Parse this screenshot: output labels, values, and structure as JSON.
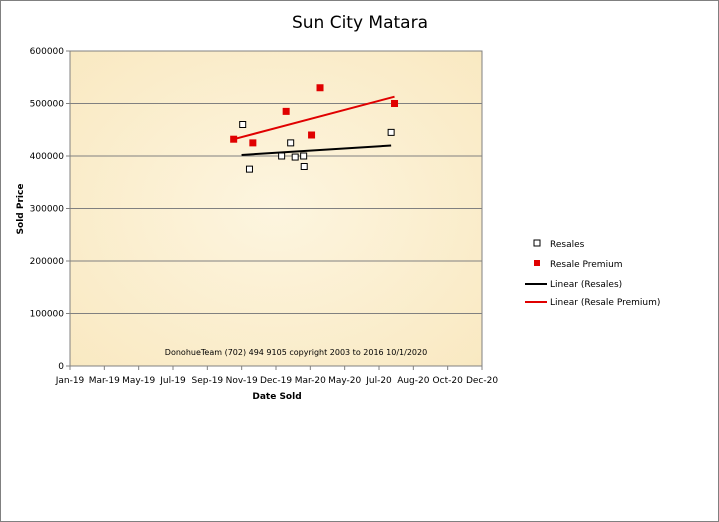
{
  "chart_data": {
    "type": "scatter",
    "title": "Sun City Matara",
    "xlabel": "Date Sold",
    "ylabel": "Sold Price",
    "x_ticks": [
      "Jan-19",
      "Mar-19",
      "May-19",
      "Jul-19",
      "Sep-19",
      "Nov-19",
      "Dec-19",
      "Mar-20",
      "May-20",
      "Jul-20",
      "Aug-20",
      "Oct-20",
      "Dec-20"
    ],
    "xlim": [
      "2019-01-01",
      "2020-12-31"
    ],
    "ylim": [
      0,
      600000
    ],
    "y_ticks": [
      0,
      100000,
      200000,
      300000,
      400000,
      500000,
      600000
    ],
    "y_tick_labels": [
      "0",
      "100000",
      "200000",
      "300000",
      "400000",
      "500000",
      "600000"
    ],
    "grid": "horizontal",
    "legend_position": "right",
    "footer": "DonohueTeam   (702) 494 9105 copyright  2003 to 2016  10/1/2020",
    "series": [
      {
        "name": "Resales",
        "marker": "hollow-square",
        "color": "#000000",
        "points": [
          {
            "x": "2019-11-03",
            "y": 460000
          },
          {
            "x": "2019-11-15",
            "y": 375000
          },
          {
            "x": "2020-01-11",
            "y": 400000
          },
          {
            "x": "2020-01-27",
            "y": 425000
          },
          {
            "x": "2020-02-04",
            "y": 398000
          },
          {
            "x": "2020-02-19",
            "y": 400000
          },
          {
            "x": "2020-02-20",
            "y": 380000
          },
          {
            "x": "2020-07-23",
            "y": 445000
          }
        ]
      },
      {
        "name": "Resale Premium",
        "marker": "filled-square",
        "color": "#e00000",
        "points": [
          {
            "x": "2019-10-18",
            "y": 432000
          },
          {
            "x": "2019-11-21",
            "y": 425000
          },
          {
            "x": "2020-01-19",
            "y": 485000
          },
          {
            "x": "2020-03-04",
            "y": 440000
          },
          {
            "x": "2020-03-19",
            "y": 530000
          },
          {
            "x": "2020-07-29",
            "y": 500000
          }
        ]
      }
    ],
    "trendlines": [
      {
        "name": "Linear (Resales)",
        "color": "#000000",
        "from": {
          "x": "2019-11-01",
          "y": 402000
        },
        "to": {
          "x": "2020-07-23",
          "y": 420000
        }
      },
      {
        "name": "Linear (Resale Premium)",
        "color": "#e00000",
        "from": {
          "x": "2019-10-18",
          "y": 432000
        },
        "to": {
          "x": "2020-07-29",
          "y": 513000
        }
      }
    ],
    "plot_background": "#fdf3d8"
  }
}
